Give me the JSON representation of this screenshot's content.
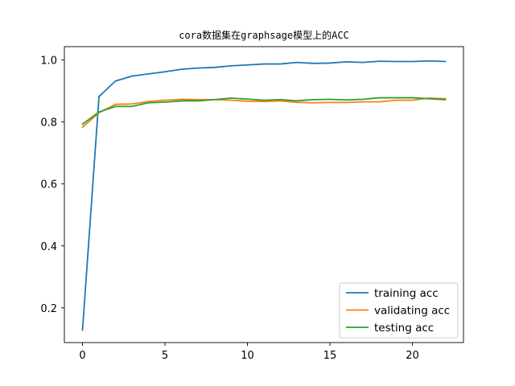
{
  "chart_data": {
    "type": "line",
    "title": "cora数据集在graphsage模型上的ACC",
    "xlabel": "",
    "ylabel": "",
    "xlim": [
      -1.1,
      23.1
    ],
    "ylim": [
      0.088,
      1.043
    ],
    "xticks": [
      0,
      5,
      10,
      15,
      20
    ],
    "xtick_labels": [
      "0",
      "5",
      "10",
      "15",
      "20"
    ],
    "yticks": [
      0.2,
      0.4,
      0.6,
      0.8,
      1.0
    ],
    "ytick_labels": [
      "0.2",
      "0.4",
      "0.6",
      "0.8",
      "1.0"
    ],
    "grid": false,
    "legend_position": "lower-right",
    "x": [
      0,
      1,
      2,
      3,
      4,
      5,
      6,
      7,
      8,
      9,
      10,
      11,
      12,
      13,
      14,
      15,
      16,
      17,
      18,
      19,
      20,
      21,
      22
    ],
    "series": [
      {
        "name": "training acc",
        "color": "#1f77b4",
        "values": [
          0.128,
          0.882,
          0.932,
          0.948,
          0.955,
          0.962,
          0.97,
          0.974,
          0.976,
          0.981,
          0.984,
          0.987,
          0.987,
          0.992,
          0.989,
          0.99,
          0.994,
          0.992,
          0.996,
          0.995,
          0.995,
          0.997,
          0.995
        ]
      },
      {
        "name": "validating acc",
        "color": "#ff7f0e",
        "values": [
          0.783,
          0.83,
          0.857,
          0.858,
          0.866,
          0.87,
          0.873,
          0.872,
          0.872,
          0.87,
          0.867,
          0.866,
          0.868,
          0.863,
          0.862,
          0.863,
          0.863,
          0.865,
          0.865,
          0.87,
          0.87,
          0.877,
          0.875
        ]
      },
      {
        "name": "testing acc",
        "color": "#2ca02c",
        "values": [
          0.793,
          0.832,
          0.85,
          0.85,
          0.862,
          0.864,
          0.868,
          0.868,
          0.872,
          0.877,
          0.874,
          0.87,
          0.872,
          0.868,
          0.872,
          0.873,
          0.871,
          0.873,
          0.878,
          0.878,
          0.878,
          0.875,
          0.872
        ]
      }
    ]
  }
}
